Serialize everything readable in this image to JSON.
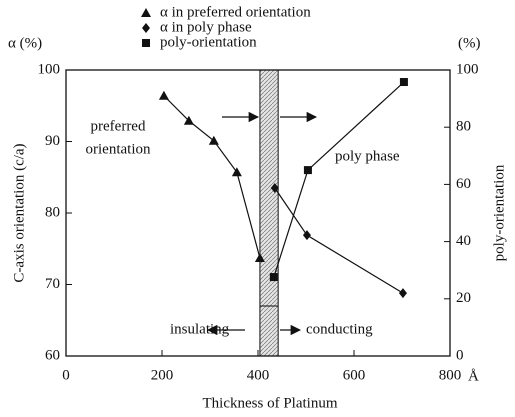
{
  "chart_data": {
    "type": "line",
    "y_left_label": "α (%)",
    "y_right_label": "(%)",
    "ylabel": "C-axis orientation (c/a)",
    "y2label": "poly-orientation",
    "xlabel": "Thickness of Platinum",
    "x_unit": "Å",
    "xlim": [
      0,
      800
    ],
    "xticks": [
      0,
      200,
      400,
      600,
      800
    ],
    "ylim": [
      60,
      100
    ],
    "yticks": [
      60,
      70,
      80,
      90,
      100
    ],
    "y2lim": [
      0,
      100
    ],
    "y2ticks": [
      0,
      20,
      40,
      60,
      80,
      100
    ],
    "shaded_region": [
      404,
      442
    ],
    "annotations": [
      "preferred",
      "orientation",
      "poly phase",
      "insulating",
      "conducting"
    ],
    "series": [
      {
        "name": "α in preferred orientation",
        "marker": "triangle",
        "color": "#111",
        "x": [
          204,
          256,
          308,
          356,
          404
        ],
        "values": [
          96.4,
          92.9,
          90.1,
          85.7,
          73.7
        ]
      },
      {
        "name": "α in poly phase",
        "marker": "diamond",
        "color": "#111",
        "x": [
          435,
          502,
          702
        ],
        "values": [
          83.5,
          76.9,
          68.8
        ]
      },
      {
        "name": "poly-orientation",
        "marker": "square",
        "color": "#111",
        "axis": "y2",
        "x": [
          433,
          504,
          704
        ],
        "values": [
          27.6,
          65,
          95.8
        ]
      }
    ]
  }
}
